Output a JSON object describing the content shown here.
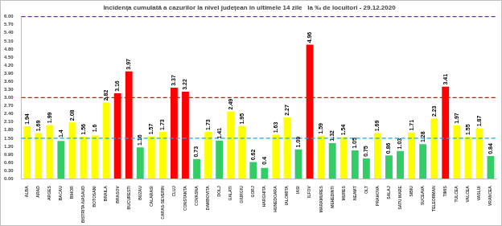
{
  "chart_data": {
    "type": "bar",
    "title": "Incidența cumulată a cazurilor la nivel județean în ultimele 14 zile   la ‰ de locuitori - 29.12.2020",
    "categories": [
      "ALBA",
      "ARAD",
      "ARGES",
      "BACAU",
      "BIHOR",
      "BISTRITA-NASAUD",
      "BOTOSANI",
      "BRAILA",
      "BRASOV",
      "BUCURESTI",
      "BUZAU",
      "CALARASI",
      "CARAS-SEVERIN",
      "CLUJ",
      "CONSTANTA",
      "COVASNA",
      "DAMBOVITA",
      "DOLJ",
      "GALATI",
      "GIURGIU",
      "GORJ",
      "HARGHITA",
      "HUNEDOARA",
      "IALOMITA",
      "IASI",
      "ILFOV",
      "MARAMURES",
      "MEHEDINTI",
      "MURES",
      "NEAMT",
      "OLT",
      "PRAHOVA",
      "SALAJ",
      "SATU MARE",
      "SIBIU",
      "SUCEAVA",
      "TELEORMAN",
      "TIMIS",
      "TULCEA",
      "VALCEA",
      "VASLUI",
      "VRANCEA"
    ],
    "values": [
      1.94,
      1.69,
      1.99,
      1.4,
      2.08,
      1.56,
      1.6,
      2.82,
      3.16,
      3.97,
      1.16,
      1.57,
      1.73,
      3.37,
      3.22,
      0.73,
      1.73,
      1.41,
      2.49,
      1.95,
      0.62,
      0.4,
      1.63,
      2.27,
      1.09,
      4.96,
      1.59,
      1.32,
      1.54,
      1.05,
      0.75,
      1.69,
      0.86,
      1.03,
      1.71,
      1.28,
      2.23,
      3.41,
      1.97,
      1.55,
      1.87,
      0.84
    ],
    "colors": [
      "#ffff00",
      "#ffff00",
      "#ffff00",
      "#33cc66",
      "#ffff00",
      "#ffff00",
      "#ffff00",
      "#ffff00",
      "#ff0000",
      "#ff0000",
      "#33cc66",
      "#ffff00",
      "#ffff00",
      "#ff0000",
      "#ff0000",
      "#33cc66",
      "#ffff00",
      "#33cc66",
      "#ffff00",
      "#ffff00",
      "#33cc66",
      "#33cc66",
      "#ffff00",
      "#ffff00",
      "#33cc66",
      "#ff0000",
      "#ffff00",
      "#33cc66",
      "#ffff00",
      "#33cc66",
      "#33cc66",
      "#ffff00",
      "#33cc66",
      "#33cc66",
      "#ffff00",
      "#33cc66",
      "#ffff00",
      "#ff0000",
      "#ffff00",
      "#ffff00",
      "#ffff00",
      "#33cc66"
    ],
    "data_labels": true,
    "grid": false,
    "ylim": [
      0,
      6
    ],
    "yticks": [
      {
        "value": 0,
        "label": "0.00"
      },
      {
        "value": 0.3,
        "label": "0.30"
      },
      {
        "value": 0.6,
        "label": "0.60"
      },
      {
        "value": 0.9,
        "label": "0.90"
      },
      {
        "value": 1.2,
        "label": "1.20"
      },
      {
        "value": 1.5,
        "label": "1.50"
      },
      {
        "value": 1.8,
        "label": "1.80"
      },
      {
        "value": 2.1,
        "label": "2.10"
      },
      {
        "value": 2.4,
        "label": "2.40"
      },
      {
        "value": 2.7,
        "label": "2.70"
      },
      {
        "value": 3,
        "label": "3.00"
      },
      {
        "value": 3.3,
        "label": "3.30"
      },
      {
        "value": 3.6,
        "label": "3.60"
      },
      {
        "value": 3.9,
        "label": "3.90"
      },
      {
        "value": 4.2,
        "label": "4.20"
      },
      {
        "value": 4.5,
        "label": "4.50"
      },
      {
        "value": 4.8,
        "label": "4.80"
      },
      {
        "value": 5.1,
        "label": "5.10"
      },
      {
        "value": 5.4,
        "label": "5.40"
      },
      {
        "value": 5.7,
        "label": "5.70"
      },
      {
        "value": 6,
        "label": "6.00"
      }
    ],
    "reference_lines": {
      "values": [
        1.5,
        3,
        6
      ],
      "colors": [
        "#00b0f0",
        "#ff0000",
        "#7030a0"
      ]
    }
  }
}
